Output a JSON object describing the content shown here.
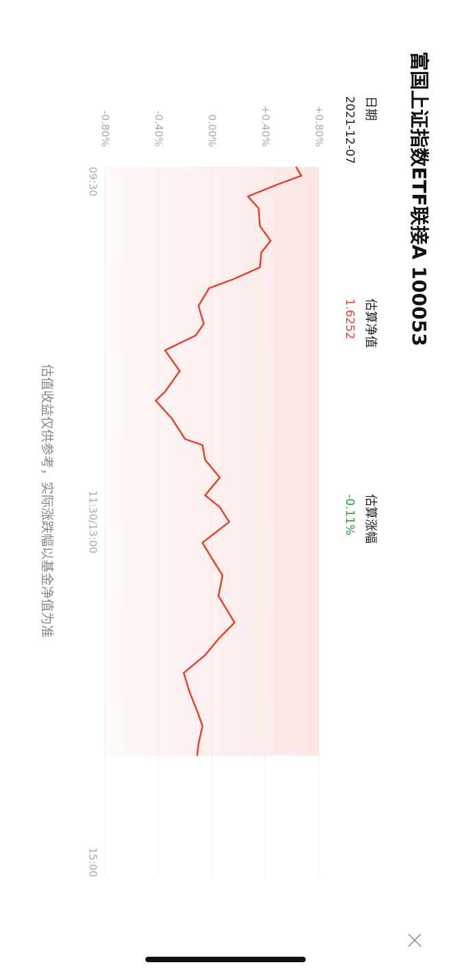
{
  "chart_data": {
    "type": "line",
    "title": "富国上证指数ETF联接A 100053",
    "info": [
      {
        "label": "日期",
        "value": "2021-12-07",
        "color": "#222222"
      },
      {
        "label": "估算净值",
        "value": "1.6252",
        "color": "#e8412f"
      },
      {
        "label": "估算涨幅",
        "value": "-0.11%",
        "color": "#2aa14a"
      }
    ],
    "x": [
      0,
      3,
      6,
      10,
      14,
      20,
      25,
      29,
      34,
      38,
      41,
      47,
      53,
      57,
      62,
      69,
      76,
      79,
      85,
      92,
      94,
      99,
      105,
      111,
      115,
      120,
      127,
      133,
      138,
      145,
      154,
      159,
      165,
      171,
      177,
      185,
      189,
      195,
      199
    ],
    "values": [
      0.63,
      0.67,
      0.49,
      0.27,
      0.35,
      0.36,
      0.44,
      0.37,
      0.36,
      0.16,
      -0.02,
      -0.1,
      -0.06,
      -0.12,
      -0.35,
      -0.24,
      -0.35,
      -0.42,
      -0.3,
      -0.2,
      -0.07,
      -0.05,
      0.06,
      -0.05,
      0.06,
      0.13,
      -0.07,
      0.01,
      0.08,
      0.05,
      0.17,
      0.06,
      -0.05,
      -0.21,
      -0.17,
      -0.1,
      -0.07,
      -0.1,
      -0.11
    ],
    "color": "#e8412f",
    "xlim": [
      0,
      240
    ],
    "xticks": [
      {
        "value": 0,
        "label": "09:30"
      },
      {
        "value": 120,
        "label": "11:30/13:00"
      },
      {
        "value": 240,
        "label": "15:00"
      }
    ],
    "ylim": [
      -0.8,
      0.8
    ],
    "yticks": [
      {
        "value": 0.8,
        "label": "+0.80%"
      },
      {
        "value": 0.4,
        "label": "+0.40%"
      },
      {
        "value": 0,
        "label": "0.00%"
      },
      {
        "value": -0.4,
        "label": "-0.40%"
      },
      {
        "value": -0.8,
        "label": "-0.80%"
      }
    ],
    "grid": true,
    "footnote": "估值收益仅供参考，实际涨跌幅以基金净值为准"
  }
}
